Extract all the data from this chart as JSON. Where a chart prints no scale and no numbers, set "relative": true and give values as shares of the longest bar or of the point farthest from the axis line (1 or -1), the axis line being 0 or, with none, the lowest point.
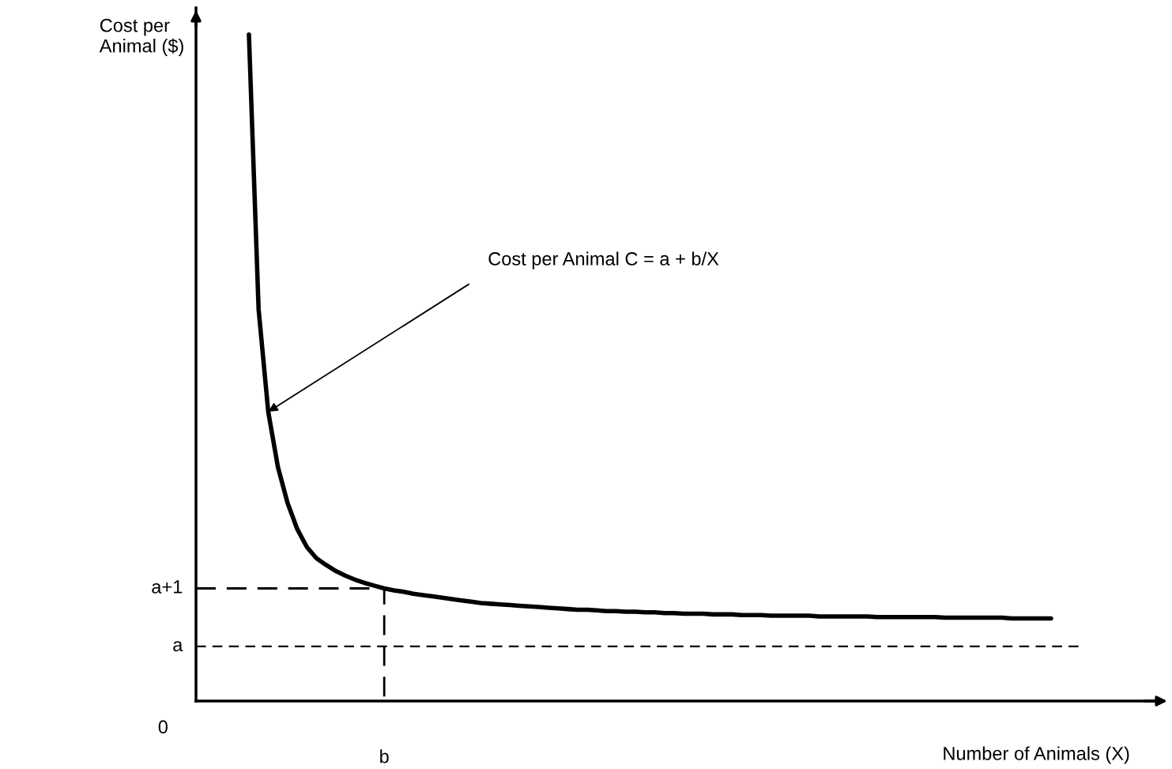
{
  "chart_data": {
    "type": "line",
    "relative": true,
    "xlabel": "Number of Animals (X)",
    "ylabel": "Cost per\nAnimal ($)",
    "categories": [
      null,
      null,
      null,
      null,
      null,
      null,
      null,
      null,
      null,
      null,
      null,
      null,
      null,
      null,
      null,
      null,
      null,
      null,
      null,
      null,
      null,
      null,
      null,
      null,
      null,
      null,
      null,
      null,
      null,
      null,
      null,
      null,
      null,
      null,
      null,
      null,
      null,
      null,
      null,
      null,
      null,
      null,
      null,
      null,
      null,
      null,
      null,
      null,
      null,
      null,
      null,
      null,
      null,
      null,
      null,
      null,
      null,
      null,
      null,
      null,
      null,
      null,
      null,
      null,
      null,
      null,
      null,
      null,
      null,
      null,
      null,
      null,
      null,
      null,
      null,
      null,
      null,
      null,
      null,
      null,
      null,
      null,
      null,
      null
    ],
    "series": [
      {
        "color": "#000000",
        "values": [
          1.0,
          0.588,
          0.434,
          0.351,
          0.297,
          0.258,
          0.231,
          0.214,
          0.204,
          0.195,
          0.188,
          0.182,
          0.177,
          0.173,
          0.169,
          0.166,
          0.164,
          0.161,
          0.159,
          0.157,
          0.155,
          0.153,
          0.151,
          0.149,
          0.147,
          0.146,
          0.145,
          0.144,
          0.143,
          0.142,
          0.141,
          0.14,
          0.139,
          0.138,
          0.137,
          0.137,
          0.136,
          0.135,
          0.135,
          0.134,
          0.134,
          0.133,
          0.133,
          0.132,
          0.132,
          0.131,
          0.131,
          0.131,
          0.13,
          0.13,
          0.13,
          0.129,
          0.129,
          0.129,
          0.128,
          0.128,
          0.128,
          0.128,
          0.128,
          0.127,
          0.127,
          0.127,
          0.127,
          0.127,
          0.127,
          0.126,
          0.126,
          0.126,
          0.126,
          0.126,
          0.126,
          0.126,
          0.125,
          0.125,
          0.125,
          0.125,
          0.125,
          0.125,
          0.125,
          0.124,
          0.124,
          0.124,
          0.124,
          0.124
        ]
      }
    ],
    "ref_lines": [
      {
        "axis": "y",
        "value": 0.169,
        "label": "a+1",
        "line_style": "dashed",
        "color": "#000000"
      },
      {
        "axis": "y",
        "value": 0.082,
        "label": "a",
        "line_style": "dashed",
        "color": "#000000"
      }
    ],
    "annotations": [
      "Cost per Animal C = a + b/X",
      "0",
      "b"
    ]
  }
}
